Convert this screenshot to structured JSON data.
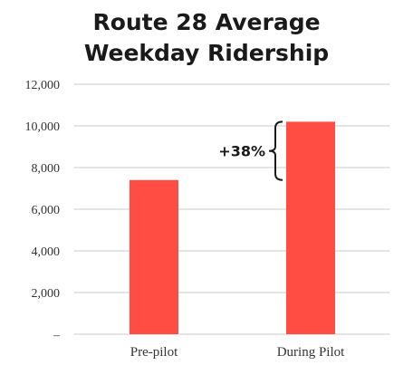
{
  "chart_data": {
    "type": "bar",
    "title_lines": [
      "Route 28 Average",
      "Weekday Ridership"
    ],
    "categories": [
      "Pre-pilot",
      "During Pilot"
    ],
    "values": [
      7400,
      10200
    ],
    "ylim": [
      0,
      12000
    ],
    "yticks": [
      0,
      2000,
      4000,
      6000,
      8000,
      10000,
      12000
    ],
    "ytick_labels": [
      "–",
      "2,000",
      "4,000",
      "6,000",
      "8,000",
      "10,000",
      "12,000"
    ],
    "grid": true,
    "bar_color": "#ff4d44",
    "grid_color": "#c8c8c8",
    "annotation": {
      "text": "+38%",
      "from_value": 7400,
      "to_value": 10200
    }
  }
}
